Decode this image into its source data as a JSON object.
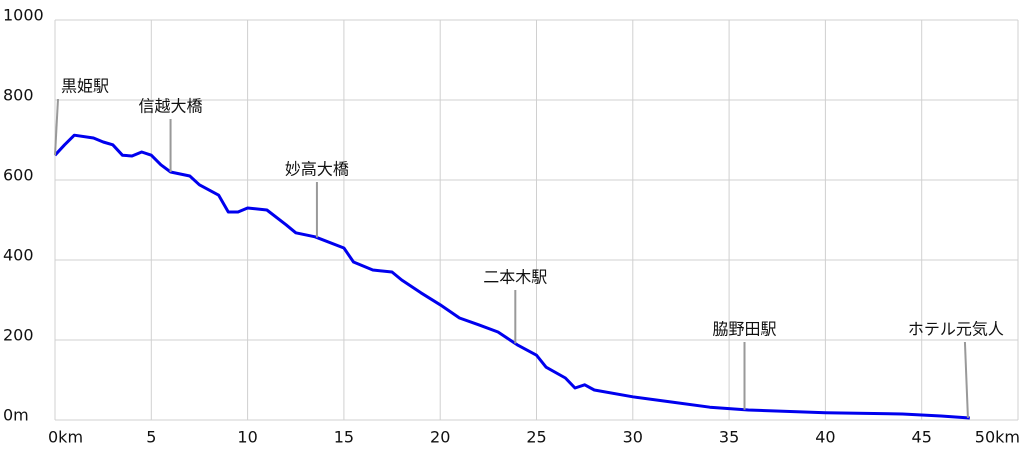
{
  "chart_data": {
    "type": "line",
    "x": [
      0,
      0.5,
      1,
      2,
      2.5,
      3,
      3.5,
      4,
      4.5,
      5,
      5.5,
      6,
      7,
      7.5,
      8.5,
      9,
      9.5,
      10,
      11,
      12,
      12.5,
      13.5,
      15,
      15.5,
      16.5,
      17.5,
      18,
      19,
      20,
      21,
      22,
      23,
      24,
      25,
      25.5,
      26.5,
      27,
      27.5,
      28,
      30,
      32,
      34,
      36,
      40,
      44,
      46,
      47.5
    ],
    "series": [
      {
        "color": "#0000ee",
        "values": [
          662,
          688,
          712,
          705,
          695,
          688,
          662,
          660,
          670,
          662,
          638,
          620,
          610,
          588,
          562,
          520,
          520,
          530,
          525,
          488,
          468,
          458,
          430,
          395,
          375,
          370,
          350,
          318,
          288,
          255,
          238,
          220,
          188,
          162,
          132,
          105,
          80,
          88,
          75,
          58,
          45,
          32,
          25,
          18,
          15,
          10,
          5
        ]
      }
    ],
    "xlim": [
      0,
      50
    ],
    "ylim": [
      0,
      1000
    ],
    "xticks": [
      {
        "value": 0,
        "label": "0km"
      },
      5,
      10,
      15,
      20,
      25,
      30,
      35,
      40,
      45,
      {
        "value": 50,
        "label": "50km"
      }
    ],
    "yticks": [
      {
        "value": 0,
        "label": "0m"
      },
      200,
      400,
      600,
      800,
      1000
    ],
    "grid": true,
    "annotations": [
      {
        "text": "黒姫駅",
        "x": 0
      },
      {
        "text": "信越大橋",
        "x": 6
      },
      {
        "text": "妙高大橋",
        "x": 13.6
      },
      {
        "text": "二本木駅",
        "x": 23.9
      },
      {
        "text": "脇野田駅",
        "x": 35.8
      },
      {
        "text": "ホテル元気人",
        "x": 47.4
      }
    ]
  }
}
